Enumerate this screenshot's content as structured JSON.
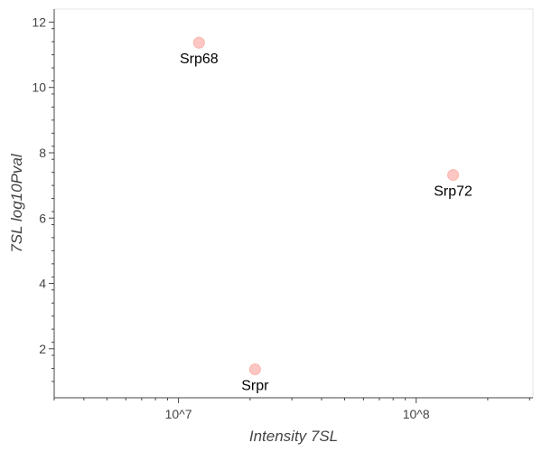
{
  "chart_data": {
    "type": "scatter",
    "title": "",
    "xlabel": "Intensity 7SL",
    "ylabel": "7SL log10Pval",
    "x_scale": "log",
    "xlim": [
      3000000,
      310000000
    ],
    "ylim": [
      0.5,
      12.4
    ],
    "x_ticks": [
      {
        "value": 10000000,
        "label": "10^7"
      },
      {
        "value": 100000000,
        "label": "10^8"
      }
    ],
    "y_ticks": [
      {
        "value": 2,
        "label": "2"
      },
      {
        "value": 4,
        "label": "4"
      },
      {
        "value": 6,
        "label": "6"
      },
      {
        "value": 8,
        "label": "8"
      },
      {
        "value": 10,
        "label": "10"
      },
      {
        "value": 12,
        "label": "12"
      }
    ],
    "grid": false,
    "legend": "none",
    "point_color": "#fbb4ae",
    "points": [
      {
        "label": "Srp68",
        "x": 12200000,
        "y": 11.37
      },
      {
        "label": "Srp72",
        "x": 143000000,
        "y": 7.32
      },
      {
        "label": "Srpr",
        "x": 21000000,
        "y": 1.37
      }
    ]
  }
}
